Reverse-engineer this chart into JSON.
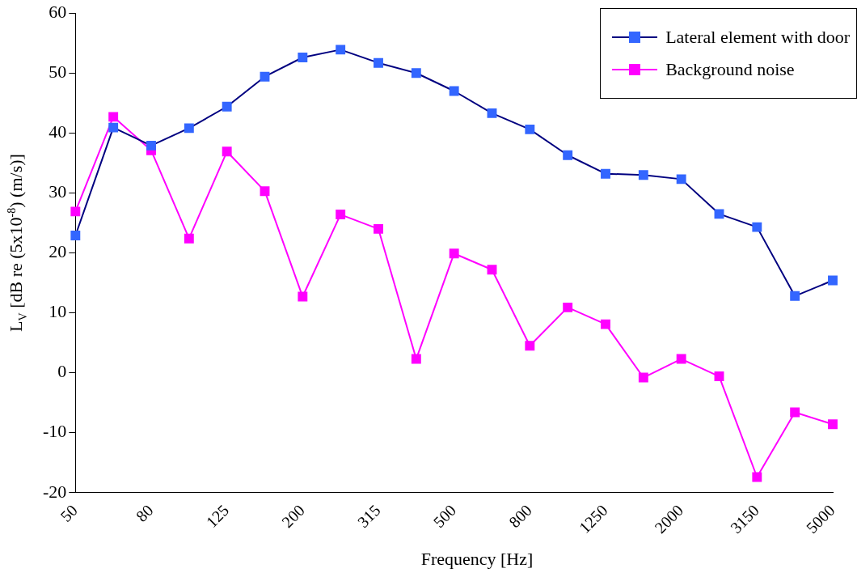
{
  "chart_data": {
    "type": "line",
    "xlabel": "Frequency [Hz]",
    "ylabel": "L$_{V}$ [dB re (5x10$^{-8}$) (m/s)]",
    "categories": [
      "50",
      null,
      "80",
      null,
      "125",
      null,
      "200",
      null,
      "315",
      null,
      "500",
      null,
      "800",
      null,
      "1250",
      null,
      "2000",
      null,
      "3150",
      null,
      "5000"
    ],
    "series": [
      {
        "name": "Lateral element with door",
        "color": "#000080",
        "values": [
          22.9,
          40.9,
          37.9,
          40.8,
          44.4,
          49.4,
          52.6,
          53.9,
          51.7,
          50,
          47,
          43.3,
          40.6,
          36.3,
          33.2,
          33,
          32.3,
          26.5,
          24.3,
          12.8,
          15.4
        ]
      },
      {
        "name": "Background noise",
        "color": "#ff00ff",
        "values": [
          26.9,
          42.7,
          37.1,
          22.4,
          36.9,
          30.3,
          12.7,
          26.4,
          24,
          2.3,
          19.9,
          17.2,
          4.5,
          10.9,
          8.1,
          -0.8,
          2.3,
          -0.6,
          -17.4,
          -6.6,
          -8.6
        ]
      }
    ],
    "ylim": [
      -20,
      60
    ],
    "yticks": [
      -20,
      -10,
      0,
      10,
      20,
      30,
      40,
      50,
      60
    ],
    "grid": false,
    "legend": "top right",
    "marker": "square",
    "line_style": "solid"
  }
}
